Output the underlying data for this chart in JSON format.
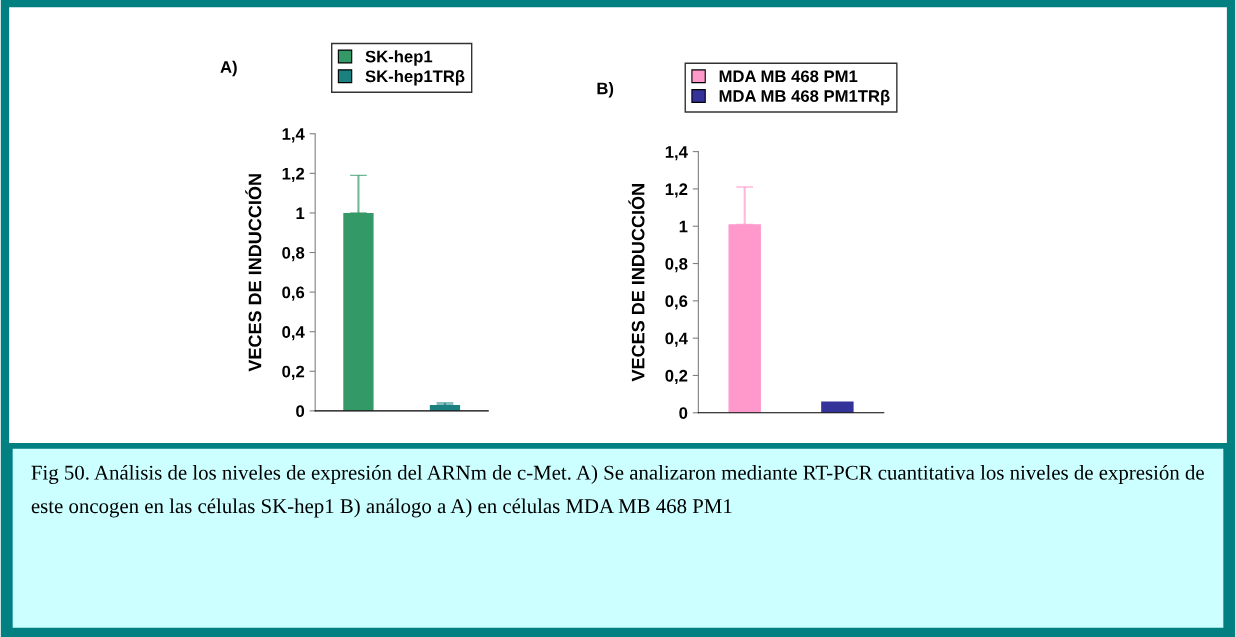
{
  "chart_data": [
    {
      "type": "bar",
      "title": "A)",
      "ylabel": "VECES DE INDUCCIÓN",
      "categories": [
        null,
        null
      ],
      "series": [
        {
          "name": "SK-hep1",
          "color": "#339966",
          "values": [
            1.0,
            null
          ],
          "errors": [
            0.19,
            null
          ]
        },
        {
          "name": "SK-hep1TRβ",
          "color": "#1a8080",
          "values": [
            null,
            0.03
          ],
          "errors": [
            null,
            0.01
          ]
        }
      ],
      "ylim": [
        0,
        1.4
      ],
      "yticks": [
        0,
        {
          "value": 0.2,
          "label": "0,2"
        },
        {
          "value": 0.4,
          "label": "0,4"
        },
        {
          "value": 0.6,
          "label": "0,6"
        },
        {
          "value": 0.8,
          "label": "0,8"
        },
        1,
        {
          "value": 1.2,
          "label": "1,2"
        },
        {
          "value": 1.4,
          "label": "1,4"
        }
      ],
      "legend": "top",
      "grid": false,
      "annotations": [
        "Fig 50. Análisis de los niveles de expresión del ARNm de c-Met. A) Se analizaron mediante RT-PCR cuantitativa los niveles de expresión de este oncogen en las células SK-hep1 B) análogo a A) en células MDA MB 468 PM1"
      ]
    },
    {
      "type": "bar",
      "title": "B)",
      "ylabel": "VECES DE INDUCCIÓN",
      "categories": [
        null,
        null
      ],
      "series": [
        {
          "name": "MDA MB 468 PM1",
          "color": "#ff99cc",
          "values": [
            1.01,
            null
          ],
          "errors": [
            0.2,
            null
          ]
        },
        {
          "name": "MDA MB 468 PM1TRβ",
          "color": "#333399",
          "values": [
            null,
            0.06
          ],
          "errors": [
            null,
            null
          ]
        }
      ],
      "ylim": [
        0,
        1.4
      ],
      "yticks": [
        0,
        {
          "value": 0.2,
          "label": "0,2"
        },
        {
          "value": 0.4,
          "label": "0,4"
        },
        {
          "value": 0.6,
          "label": "0,6"
        },
        {
          "value": 0.8,
          "label": "0,8"
        },
        1,
        {
          "value": 1.2,
          "label": "1,2"
        },
        {
          "value": 1.4,
          "label": "1,4"
        }
      ],
      "legend": "top",
      "grid": false
    }
  ]
}
